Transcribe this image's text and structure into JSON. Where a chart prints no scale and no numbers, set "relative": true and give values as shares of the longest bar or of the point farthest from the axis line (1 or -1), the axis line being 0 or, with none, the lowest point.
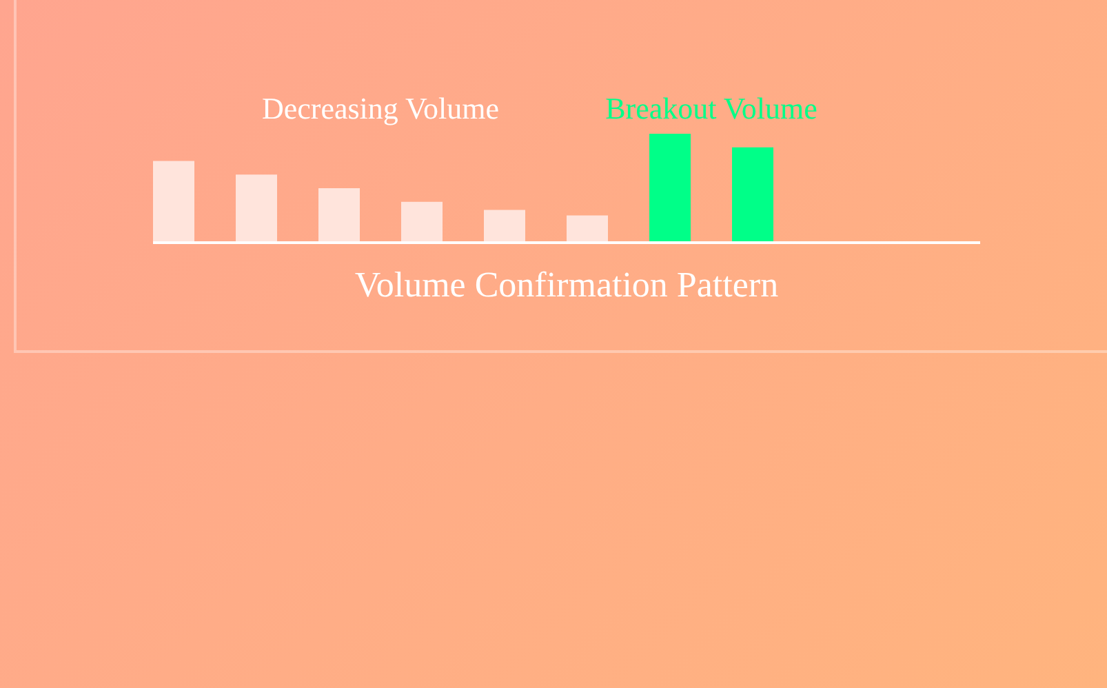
{
  "chart_data": {
    "type": "bar",
    "title": "Volume Confirmation Pattern",
    "relative": true,
    "categories": [
      null,
      null,
      null,
      null,
      null,
      null,
      null,
      null
    ],
    "values": [
      0.75,
      0.625,
      0.5,
      0.375,
      0.3,
      0.25,
      1,
      0.875
    ],
    "colors": [
      "#ffe4dc",
      "#ffe4dc",
      "#ffe4dc",
      "#ffe4dc",
      "#ffe4dc",
      "#ffe4dc",
      "#00ff88",
      "#00ff88"
    ],
    "annotations": [
      "Decreasing Volume",
      "Breakout Volume"
    ],
    "legend": false
  }
}
